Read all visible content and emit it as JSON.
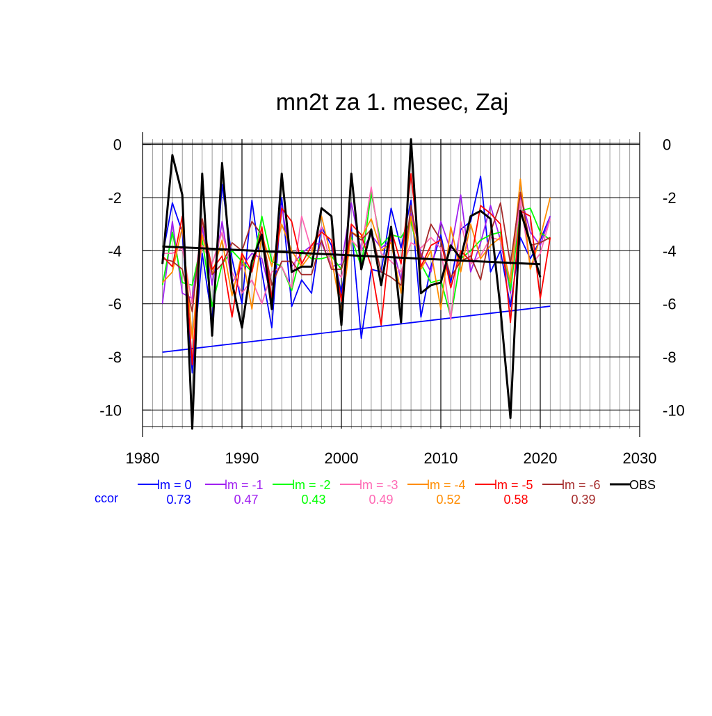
{
  "chart_data": {
    "type": "line",
    "title": "mn2t za 1. mesec, Zaj",
    "xlabel": "",
    "ylabel": "",
    "xlim": [
      1980,
      2030
    ],
    "ylim": [
      -10.7,
      0.2
    ],
    "x_ticks": [
      "1980",
      "1990",
      "2000",
      "2010",
      "2020",
      "2030"
    ],
    "y_ticks": [
      "0",
      "-2",
      "-4",
      "-6",
      "-8",
      "-10"
    ],
    "grid": true,
    "legend_position": "bottom",
    "ccor_label": "ccor",
    "x": [
      1982,
      1983,
      1984,
      1985,
      1986,
      1987,
      1988,
      1989,
      1990,
      1991,
      1992,
      1993,
      1994,
      1995,
      1996,
      1997,
      1998,
      1999,
      2000,
      2001,
      2002,
      2003,
      2004,
      2005,
      2006,
      2007,
      2008,
      2009,
      2010,
      2011,
      2012,
      2013,
      2014,
      2015,
      2016,
      2017,
      2018,
      2019,
      2020,
      2021
    ],
    "series": [
      {
        "name": "lm = 0",
        "color": "#0000ff",
        "ccor": "0.73",
        "values": [
          -4.2,
          -2.2,
          -3.3,
          -8.6,
          -4.1,
          -6.6,
          -1.5,
          -4.3,
          -6.0,
          -2.1,
          -4.8,
          -6.9,
          -2.0,
          -6.1,
          -5.1,
          -5.6,
          -3.1,
          -3.8,
          -5.6,
          -3.1,
          -7.3,
          -4.7,
          -4.8,
          -2.4,
          -3.9,
          -2.1,
          -6.5,
          -4.6,
          -3.4,
          -5.2,
          -3.2,
          -2.9,
          -1.2,
          -4.8,
          -4.0,
          -6.1,
          -3.5,
          -4.3,
          -3.6,
          -2.7
        ],
        "trend": [
          -7.82,
          -6.09
        ]
      },
      {
        "name": "lm = -1",
        "color": "#a020f0",
        "ccor": "0.47",
        "values": [
          -6.0,
          -2.9,
          -5.6,
          -5.8,
          -3.1,
          -5.3,
          -2.9,
          -5.2,
          -4.6,
          -4.1,
          -4.3,
          -5.8,
          -2.3,
          -4.6,
          -4.1,
          -3.8,
          -3.7,
          -4.6,
          -4.5,
          -2.2,
          -4.0,
          -3.4,
          -3.9,
          -3.6,
          -5.1,
          -2.6,
          -4.1,
          -4.8,
          -2.9,
          -4.0,
          -1.9,
          -4.8,
          -3.7,
          -2.3,
          -3.6,
          -5.6,
          -1.9,
          -3.3,
          -3.8,
          -2.7
        ]
      },
      {
        "name": "lm = -2",
        "color": "#00ff00",
        "ccor": "0.43",
        "values": [
          -5.3,
          -3.3,
          -5.2,
          -5.3,
          -3.6,
          -6.1,
          -4.5,
          -4.0,
          -4.4,
          -4.8,
          -2.7,
          -4.4,
          -4.6,
          -5.5,
          -4.0,
          -4.3,
          -4.3,
          -4.2,
          -4.7,
          -3.5,
          -4.6,
          -1.8,
          -3.8,
          -3.4,
          -3.5,
          -2.9,
          -4.5,
          -5.2,
          -5.1,
          -6.5,
          -4.3,
          -4.0,
          -3.6,
          -3.4,
          -3.3,
          -5.5,
          -2.5,
          -2.4,
          -3.3,
          -3.6
        ]
      },
      {
        "name": "lm = -3",
        "color": "#ff69b4",
        "ccor": "0.49",
        "values": [
          -4.1,
          -4.1,
          -3.9,
          -6.0,
          -3.8,
          -4.5,
          -3.3,
          -4.8,
          -5.6,
          -5.1,
          -6.0,
          -4.8,
          -4.6,
          -5.4,
          -2.7,
          -4.0,
          -3.1,
          -4.6,
          -5.0,
          -3.6,
          -4.0,
          -1.6,
          -4.1,
          -4.4,
          -4.8,
          -3.7,
          -3.9,
          -3.5,
          -3.9,
          -6.6,
          -2.9,
          -4.5,
          -4.2,
          -3.5,
          -3.6,
          -5.2,
          -2.1,
          -4.6,
          -4.1,
          -2.8
        ]
      },
      {
        "name": "lm = -4",
        "color": "#ff8c00",
        "ccor": "0.52",
        "values": [
          -5.2,
          -4.8,
          -3.1,
          -7.3,
          -3.4,
          -4.9,
          -3.6,
          -5.7,
          -4.1,
          -6.2,
          -3.4,
          -4.6,
          -3.0,
          -4.0,
          -4.6,
          -4.1,
          -2.7,
          -4.3,
          -6.3,
          -3.3,
          -3.5,
          -2.8,
          -4.0,
          -3.7,
          -5.6,
          -2.7,
          -4.7,
          -4.0,
          -6.2,
          -3.1,
          -4.8,
          -3.0,
          -4.3,
          -3.8,
          -3.5,
          -5.2,
          -1.3,
          -4.7,
          -3.5,
          -2.0
        ]
      },
      {
        "name": "lm = -5",
        "color": "#ff0000",
        "ccor": "0.58",
        "values": [
          -4.2,
          -4.6,
          -2.7,
          -8.3,
          -2.8,
          -4.7,
          -4.2,
          -6.5,
          -4.1,
          -4.8,
          -3.1,
          -5.8,
          -2.4,
          -2.9,
          -4.5,
          -3.8,
          -3.3,
          -3.6,
          -5.9,
          -3.0,
          -3.4,
          -4.6,
          -6.8,
          -3.2,
          -4.5,
          -1.1,
          -4.6,
          -3.8,
          -3.6,
          -5.4,
          -4.0,
          -4.4,
          -2.3,
          -2.6,
          -3.0,
          -6.7,
          -2.5,
          -2.7,
          -5.8,
          -3.5
        ]
      },
      {
        "name": "lm = -6",
        "color": "#a52a2a",
        "ccor": "0.39",
        "values": [
          -4.3,
          -4.4,
          -4.7,
          -6.3,
          -2.8,
          -4.9,
          -4.5,
          -3.7,
          -4.0,
          -2.9,
          -3.4,
          -5.3,
          -4.4,
          -4.4,
          -4.9,
          -4.9,
          -3.6,
          -4.7,
          -4.7,
          -3.3,
          -3.6,
          -3.2,
          -4.8,
          -5.0,
          -5.3,
          -2.3,
          -4.3,
          -3.0,
          -3.6,
          -5.0,
          -4.4,
          -4.2,
          -5.1,
          -3.3,
          -2.2,
          -4.5,
          -1.8,
          -3.8,
          -3.7,
          -3.5
        ]
      },
      {
        "name": "OBS",
        "color": "#000000",
        "values": [
          -4.5,
          -0.4,
          -1.9,
          -10.7,
          -1.1,
          -7.2,
          -0.7,
          -5.2,
          -6.9,
          -4.4,
          -3.4,
          -6.2,
          -1.1,
          -4.8,
          -4.6,
          -4.6,
          -2.4,
          -2.7,
          -6.8,
          -1.1,
          -4.7,
          -3.2,
          -5.3,
          -3.1,
          -6.7,
          0.2,
          -5.6,
          -5.3,
          -5.2,
          -3.8,
          -4.3,
          -2.7,
          -2.5,
          -2.8,
          -6.2,
          -10.3,
          -2.5,
          -3.7,
          -5.0,
          null
        ],
        "trend": [
          -3.84,
          -4.51
        ]
      }
    ]
  }
}
